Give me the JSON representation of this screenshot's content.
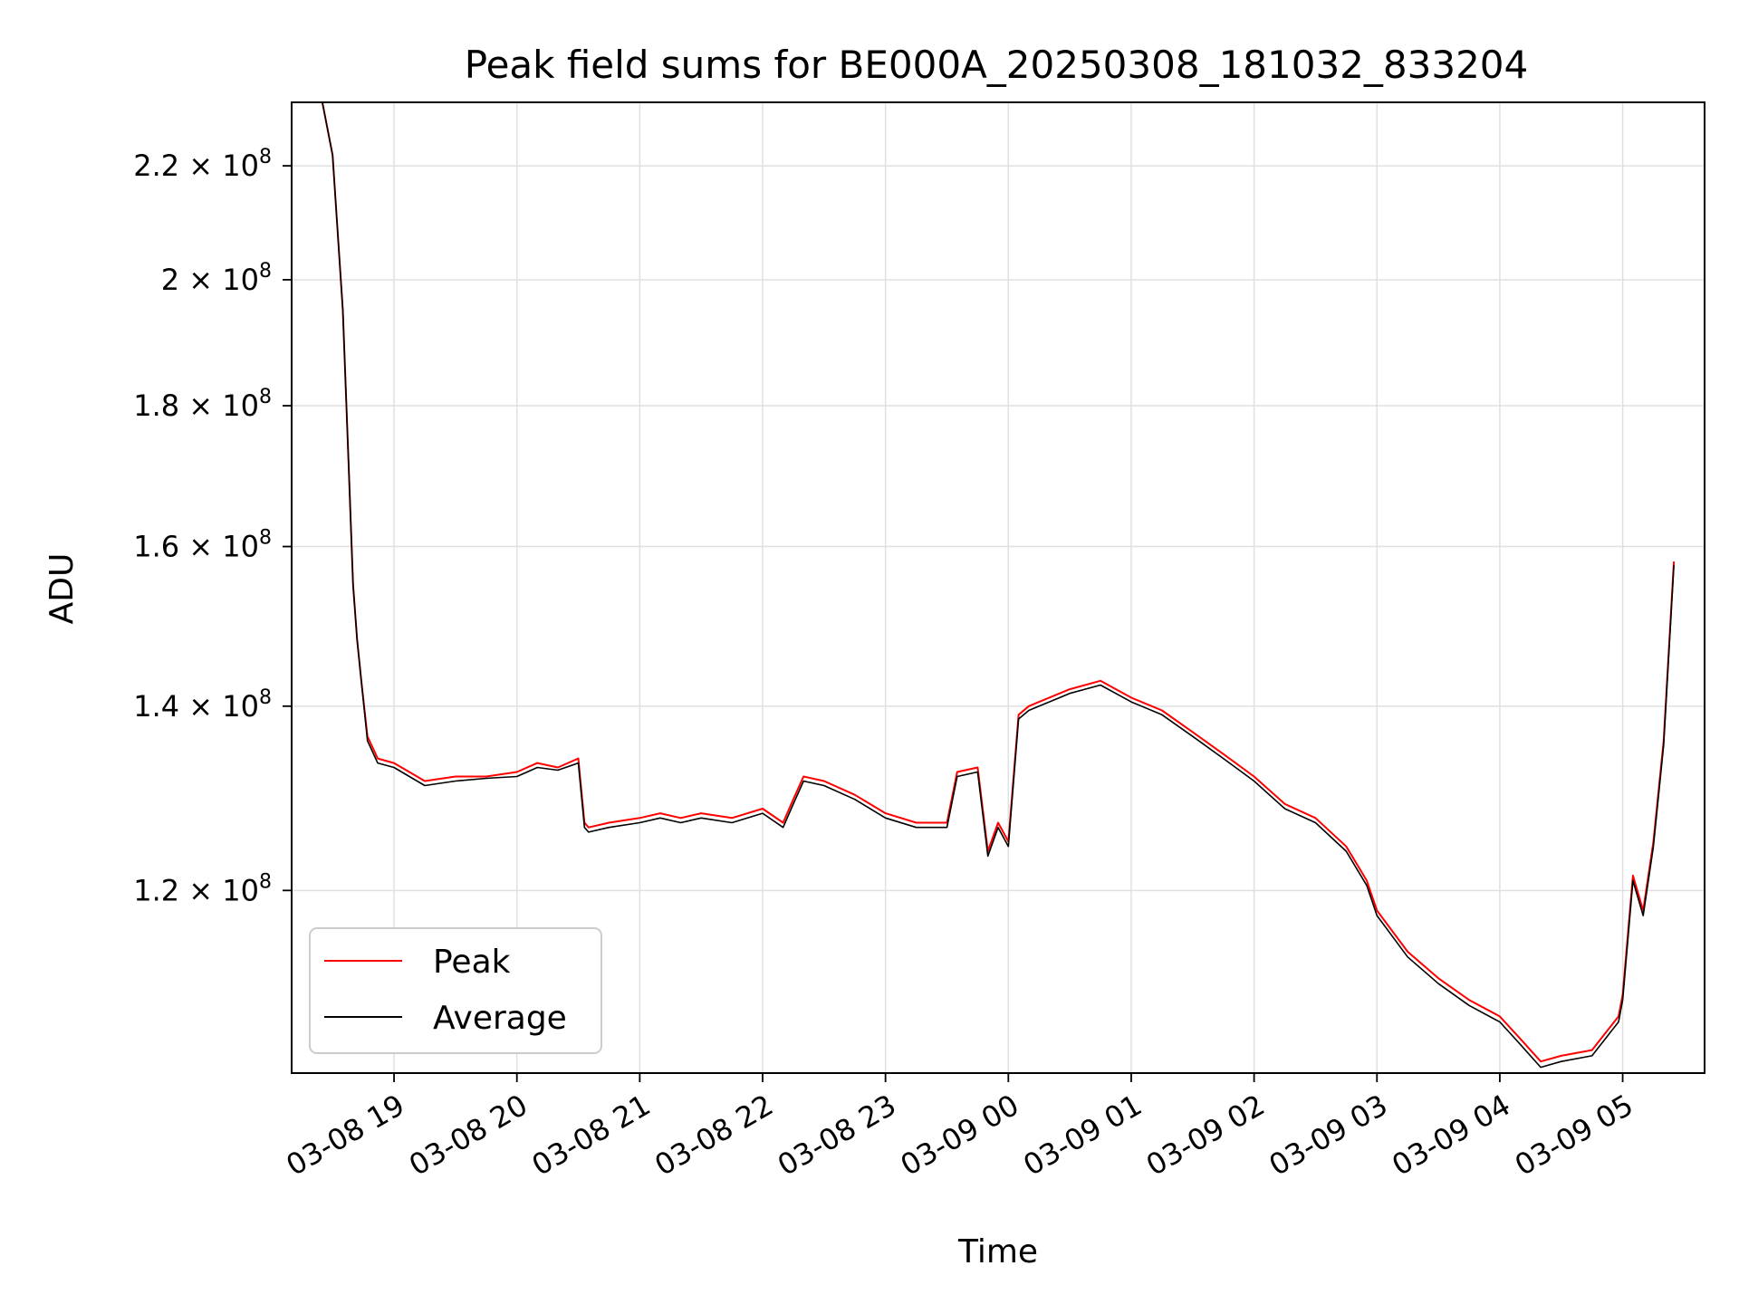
{
  "chart_data": {
    "type": "line",
    "title": "Peak field sums for BE000A_20250308_181032_833204",
    "xlabel": "Time",
    "ylabel": "ADU",
    "yscale": "log",
    "xlim": [
      "2025-03-08 18:10",
      "2025-03-09 05:40"
    ],
    "ylim": [
      103000000.0,
      232000000.0
    ],
    "grid": true,
    "legend_position": "lower-left",
    "x_ticks": [
      "03-08 19",
      "03-08 20",
      "03-08 21",
      "03-08 22",
      "03-08 23",
      "03-09 00",
      "03-09 01",
      "03-09 02",
      "03-09 03",
      "03-09 04",
      "03-09 05"
    ],
    "y_ticks": [
      {
        "value": 120000000.0,
        "mantissa": "1.2",
        "exp": "8"
      },
      {
        "value": 140000000.0,
        "mantissa": "1.4",
        "exp": "8"
      },
      {
        "value": 160000000.0,
        "mantissa": "1.6",
        "exp": "8"
      },
      {
        "value": 180000000.0,
        "mantissa": "1.8",
        "exp": "8"
      },
      {
        "value": 200000000.0,
        "mantissa": "2",
        "exp": "8"
      },
      {
        "value": 220000000.0,
        "mantissa": "2.2",
        "exp": "8"
      }
    ],
    "series": [
      {
        "name": "Peak",
        "color": "#ff0000",
        "x": [
          "2025-03-08 18:25",
          "2025-03-08 18:30",
          "2025-03-08 18:35",
          "2025-03-08 18:38",
          "2025-03-08 18:40",
          "2025-03-08 18:42",
          "2025-03-08 18:44",
          "2025-03-08 18:47",
          "2025-03-08 18:52",
          "2025-03-08 19:00",
          "2025-03-08 19:15",
          "2025-03-08 19:30",
          "2025-03-08 19:45",
          "2025-03-08 20:00",
          "2025-03-08 20:10",
          "2025-03-08 20:20",
          "2025-03-08 20:30",
          "2025-03-08 20:33",
          "2025-03-08 20:35",
          "2025-03-08 20:45",
          "2025-03-08 21:00",
          "2025-03-08 21:10",
          "2025-03-08 21:20",
          "2025-03-08 21:30",
          "2025-03-08 21:45",
          "2025-03-08 22:00",
          "2025-03-08 22:10",
          "2025-03-08 22:15",
          "2025-03-08 22:20",
          "2025-03-08 22:30",
          "2025-03-08 22:45",
          "2025-03-08 23:00",
          "2025-03-08 23:15",
          "2025-03-08 23:30",
          "2025-03-08 23:35",
          "2025-03-08 23:45",
          "2025-03-08 23:50",
          "2025-03-08 23:55",
          "2025-03-09 00:00",
          "2025-03-09 00:05",
          "2025-03-09 00:10",
          "2025-03-09 00:20",
          "2025-03-09 00:30",
          "2025-03-09 00:45",
          "2025-03-09 01:00",
          "2025-03-09 01:15",
          "2025-03-09 01:30",
          "2025-03-09 01:45",
          "2025-03-09 02:00",
          "2025-03-09 02:15",
          "2025-03-09 02:30",
          "2025-03-09 02:45",
          "2025-03-09 02:55",
          "2025-03-09 03:00",
          "2025-03-09 03:15",
          "2025-03-09 03:30",
          "2025-03-09 03:45",
          "2025-03-09 04:00",
          "2025-03-09 04:10",
          "2025-03-09 04:20",
          "2025-03-09 04:30",
          "2025-03-09 04:45",
          "2025-03-09 04:58",
          "2025-03-09 05:00",
          "2025-03-09 05:05",
          "2025-03-09 05:10",
          "2025-03-09 05:15",
          "2025-03-09 05:20",
          "2025-03-09 05:25"
        ],
        "y": [
          232000000.0,
          222000000.0,
          195000000.0,
          170000000.0,
          155000000.0,
          148000000.0,
          143000000.0,
          136500000.0,
          134000000.0,
          133500000.0,
          131500000.0,
          132000000.0,
          132000000.0,
          132500000.0,
          133500000.0,
          133000000.0,
          134000000.0,
          127000000.0,
          126500000.0,
          127000000.0,
          127500000.0,
          128000000.0,
          127500000.0,
          128000000.0,
          127500000.0,
          128500000.0,
          127000000.0,
          129500000.0,
          132000000.0,
          131500000.0,
          130000000.0,
          128000000.0,
          127000000.0,
          127000000.0,
          132500000.0,
          133000000.0,
          124000000.0,
          127000000.0,
          125000000.0,
          139000000.0,
          140000000.0,
          141000000.0,
          142000000.0,
          143000000.0,
          141000000.0,
          139500000.0,
          137000000.0,
          134500000.0,
          132000000.0,
          129000000.0,
          127500000.0,
          124500000.0,
          121000000.0,
          118000000.0,
          114000000.0,
          111500000.0,
          109500000.0,
          108000000.0,
          106000000.0,
          104000000.0,
          104500000.0,
          105000000.0,
          108000000.0,
          110000000.0,
          121500000.0,
          118000000.0,
          125000000.0,
          136000000.0,
          158000000.0
        ]
      },
      {
        "name": "Average",
        "color": "#000000",
        "x": [
          "2025-03-08 18:25",
          "2025-03-08 18:30",
          "2025-03-08 18:35",
          "2025-03-08 18:38",
          "2025-03-08 18:40",
          "2025-03-08 18:42",
          "2025-03-08 18:44",
          "2025-03-08 18:47",
          "2025-03-08 18:52",
          "2025-03-08 19:00",
          "2025-03-08 19:15",
          "2025-03-08 19:30",
          "2025-03-08 19:45",
          "2025-03-08 20:00",
          "2025-03-08 20:10",
          "2025-03-08 20:20",
          "2025-03-08 20:30",
          "2025-03-08 20:33",
          "2025-03-08 20:35",
          "2025-03-08 20:45",
          "2025-03-08 21:00",
          "2025-03-08 21:10",
          "2025-03-08 21:20",
          "2025-03-08 21:30",
          "2025-03-08 21:45",
          "2025-03-08 22:00",
          "2025-03-08 22:10",
          "2025-03-08 22:15",
          "2025-03-08 22:20",
          "2025-03-08 22:30",
          "2025-03-08 22:45",
          "2025-03-08 23:00",
          "2025-03-08 23:15",
          "2025-03-08 23:30",
          "2025-03-08 23:35",
          "2025-03-08 23:45",
          "2025-03-08 23:50",
          "2025-03-08 23:55",
          "2025-03-09 00:00",
          "2025-03-09 00:05",
          "2025-03-09 00:10",
          "2025-03-09 00:20",
          "2025-03-09 00:30",
          "2025-03-09 00:45",
          "2025-03-09 01:00",
          "2025-03-09 01:15",
          "2025-03-09 01:30",
          "2025-03-09 01:45",
          "2025-03-09 02:00",
          "2025-03-09 02:15",
          "2025-03-09 02:30",
          "2025-03-09 02:45",
          "2025-03-09 02:55",
          "2025-03-09 03:00",
          "2025-03-09 03:15",
          "2025-03-09 03:30",
          "2025-03-09 03:45",
          "2025-03-09 04:00",
          "2025-03-09 04:10",
          "2025-03-09 04:20",
          "2025-03-09 04:30",
          "2025-03-09 04:45",
          "2025-03-09 04:58",
          "2025-03-09 05:00",
          "2025-03-09 05:05",
          "2025-03-09 05:10",
          "2025-03-09 05:15",
          "2025-03-09 05:20",
          "2025-03-09 05:25"
        ],
        "y": [
          232000000.0,
          222000000.0,
          195000000.0,
          170000000.0,
          155000000.0,
          148000000.0,
          143000000.0,
          136000000.0,
          133500000.0,
          133000000.0,
          131000000.0,
          131500000.0,
          131800000.0,
          132000000.0,
          133000000.0,
          132700000.0,
          133500000.0,
          126500000.0,
          126000000.0,
          126500000.0,
          127000000.0,
          127500000.0,
          127000000.0,
          127500000.0,
          127000000.0,
          128000000.0,
          126500000.0,
          129000000.0,
          131500000.0,
          131000000.0,
          129500000.0,
          127500000.0,
          126500000.0,
          126500000.0,
          132000000.0,
          132500000.0,
          123500000.0,
          126500000.0,
          124500000.0,
          138500000.0,
          139500000.0,
          140500000.0,
          141500000.0,
          142500000.0,
          140500000.0,
          139000000.0,
          136500000.0,
          134000000.0,
          131500000.0,
          128500000.0,
          127000000.0,
          124000000.0,
          120500000.0,
          117500000.0,
          113500000.0,
          111000000.0,
          109000000.0,
          107500000.0,
          105500000.0,
          103500000.0,
          104000000.0,
          104500000.0,
          107500000.0,
          109500000.0,
          121000000.0,
          117500000.0,
          124500000.0,
          135500000.0,
          157500000.0
        ]
      }
    ]
  }
}
